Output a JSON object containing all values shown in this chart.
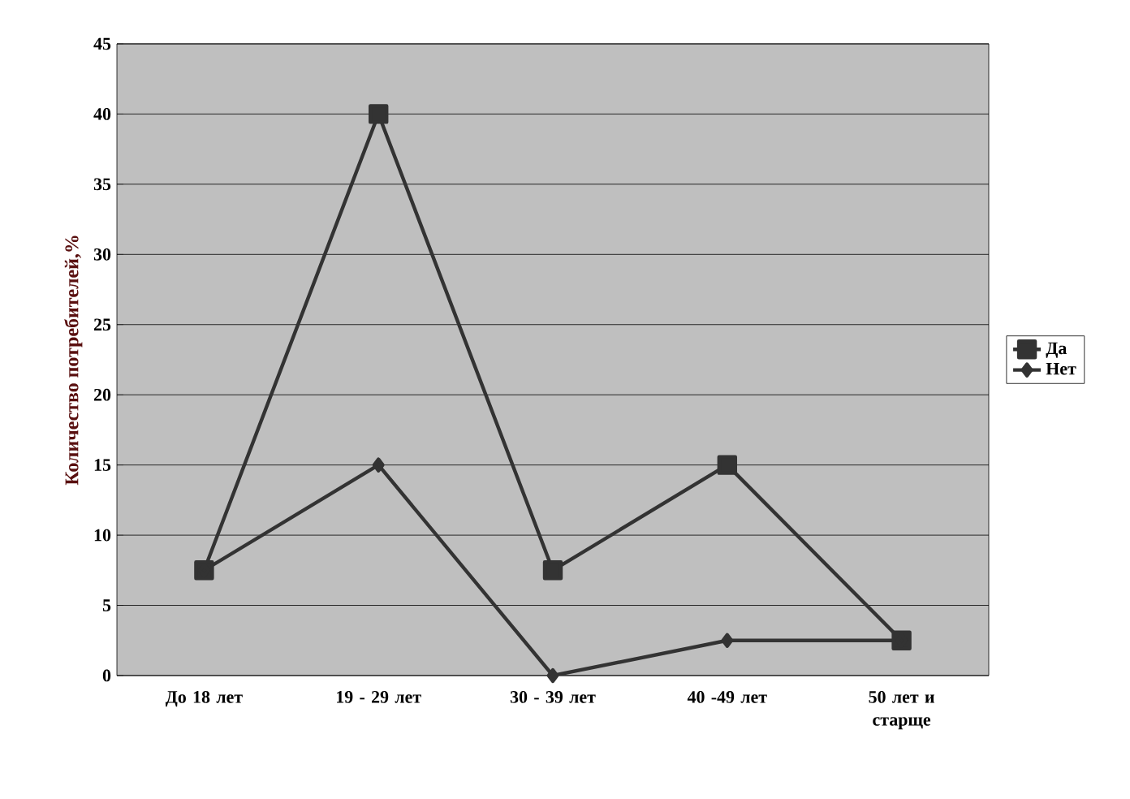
{
  "chart_data": {
    "type": "line",
    "ylabel": "Количество потребителей,%",
    "categories": [
      "До 18 лет",
      "19 - 29 лет",
      "30 - 39 лет",
      "40 -49 лет",
      "50 лет и старще"
    ],
    "series": [
      {
        "name": "Да",
        "color": "#333333",
        "marker": "square",
        "values": [
          7.5,
          40,
          7.5,
          15,
          2.5
        ]
      },
      {
        "name": "Нет",
        "color": "#333333",
        "marker": "diamond",
        "values": [
          7.5,
          15,
          0,
          2.5,
          2.5
        ]
      }
    ],
    "ylim": [
      0,
      45
    ],
    "yticks": [
      0,
      5,
      10,
      15,
      20,
      25,
      30,
      35,
      40,
      45
    ],
    "grid": "y",
    "legend": "right",
    "line_style": "solid"
  }
}
